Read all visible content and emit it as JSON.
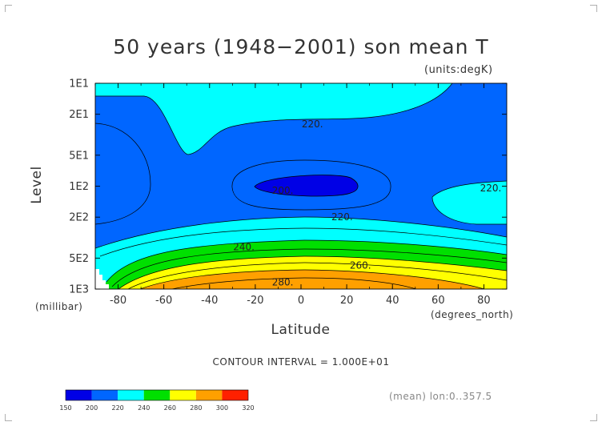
{
  "chart_data": {
    "type": "contour",
    "title": "50 years (1948−2001) son mean T",
    "units": "(units:degK)",
    "xlabel": "Latitude",
    "ylabel": "Level",
    "x_unit": "(degrees_north)",
    "y_unit": "(millibar)",
    "xlim": [
      -90,
      90
    ],
    "x_ticks": [
      -80,
      -60,
      -40,
      -20,
      0,
      20,
      40,
      60,
      80
    ],
    "y_log_scale": true,
    "ylim": [
      10,
      1000
    ],
    "y_ticks": [
      {
        "value": 10,
        "label": "1E1"
      },
      {
        "value": 20,
        "label": "2E1"
      },
      {
        "value": 50,
        "label": "5E1"
      },
      {
        "value": 100,
        "label": "1E2"
      },
      {
        "value": 200,
        "label": "2E2"
      },
      {
        "value": 500,
        "label": "5E2"
      },
      {
        "value": 1000,
        "label": "1E3"
      }
    ],
    "contour_interval_text": "CONTOUR INTERVAL = 1.000E+01",
    "contour_labels": [
      {
        "text": "220.",
        "lat": 5,
        "level": 25
      },
      {
        "text": "200.",
        "lat": -8,
        "level": 110
      },
      {
        "text": "220.",
        "lat": 83,
        "level": 105
      },
      {
        "text": "220.",
        "lat": 18,
        "level": 200
      },
      {
        "text": "240.",
        "lat": -25,
        "level": 390
      },
      {
        "text": "260.",
        "lat": 26,
        "level": 590
      },
      {
        "text": "280.",
        "lat": -8,
        "level": 860
      }
    ],
    "fill_regions": [
      {
        "level_range": "150-200",
        "color": "#0000ff",
        "where": "tropical core around 100 mb"
      },
      {
        "level_range": "200-220",
        "color": "#006cff",
        "where": "upper troposphere band"
      },
      {
        "level_range": "220-240",
        "color": "#00ffff",
        "where": "stratosphere top and mid troposphere"
      },
      {
        "level_range": "240-260",
        "color": "#00e400",
        "where": "lower troposphere"
      },
      {
        "level_range": "260-280",
        "color": "#ffff00",
        "where": "lower troposphere"
      },
      {
        "level_range": "280-300",
        "color": "#ffa000",
        "where": "tropical surface layer"
      }
    ],
    "colorbar": {
      "colors": [
        "#0000e6",
        "#0066ff",
        "#00ffff",
        "#00e000",
        "#ffff00",
        "#ffa000",
        "#ff2000"
      ],
      "labels": [
        "150",
        "200",
        "220",
        "240",
        "260",
        "280",
        "300",
        "320"
      ]
    },
    "mean_info": "(mean) lon:0..357.5"
  }
}
